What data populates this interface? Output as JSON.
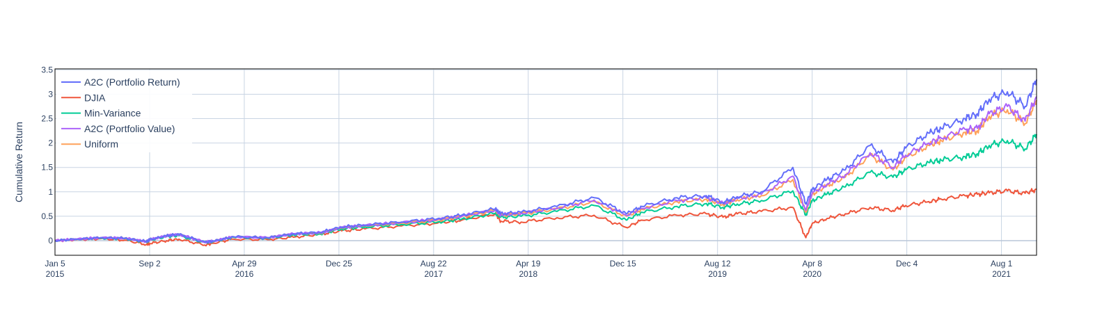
{
  "chart_data": {
    "type": "line",
    "title": "",
    "xlabel": "",
    "ylabel": "Cumulative Return",
    "x_range": [
      "2015-01-05",
      "2021-10-29"
    ],
    "ylim": [
      -0.3,
      3.52
    ],
    "grid": true,
    "legend_position": "top-left",
    "x_ticks": [
      {
        "date": "2015-01-05",
        "label": "Jan 5",
        "sublabel": "2015"
      },
      {
        "date": "2015-09-02",
        "label": "Sep 2",
        "sublabel": ""
      },
      {
        "date": "2016-04-29",
        "label": "Apr 29",
        "sublabel": "2016"
      },
      {
        "date": "2016-12-25",
        "label": "Dec 25",
        "sublabel": ""
      },
      {
        "date": "2017-08-22",
        "label": "Aug 22",
        "sublabel": "2017"
      },
      {
        "date": "2018-04-19",
        "label": "Apr 19",
        "sublabel": "2018"
      },
      {
        "date": "2018-12-15",
        "label": "Dec 15",
        "sublabel": ""
      },
      {
        "date": "2019-08-12",
        "label": "Aug 12",
        "sublabel": "2019"
      },
      {
        "date": "2020-04-08",
        "label": "Apr 8",
        "sublabel": "2020"
      },
      {
        "date": "2020-12-04",
        "label": "Dec 4",
        "sublabel": ""
      },
      {
        "date": "2021-08-01",
        "label": "Aug 1",
        "sublabel": "2021"
      }
    ],
    "y_ticks": [
      {
        "value": 0,
        "label": "0"
      },
      {
        "value": 0.5,
        "label": "0.5"
      },
      {
        "value": 1,
        "label": "1"
      },
      {
        "value": 1.5,
        "label": "1.5"
      },
      {
        "value": 2,
        "label": "2"
      },
      {
        "value": 2.5,
        "label": "2.5"
      },
      {
        "value": 3,
        "label": "3"
      },
      {
        "value": 3.5,
        "label": "3.5"
      }
    ],
    "x": [
      "2015-01-05",
      "2015-03-01",
      "2015-05-01",
      "2015-07-01",
      "2015-08-25",
      "2015-09-02",
      "2015-10-15",
      "2015-11-15",
      "2016-01-20",
      "2016-02-11",
      "2016-04-01",
      "2016-06-27",
      "2016-09-01",
      "2016-11-08",
      "2017-01-01",
      "2017-03-01",
      "2017-06-01",
      "2017-09-01",
      "2017-11-01",
      "2018-01-26",
      "2018-02-08",
      "2018-04-01",
      "2018-07-01",
      "2018-10-03",
      "2018-12-24",
      "2019-02-01",
      "2019-05-01",
      "2019-07-15",
      "2019-08-26",
      "2019-10-01",
      "2019-12-01",
      "2020-02-19",
      "2020-03-23",
      "2020-04-08",
      "2020-05-15",
      "2020-07-01",
      "2020-09-02",
      "2020-10-30",
      "2020-12-01",
      "2021-01-29",
      "2021-03-01",
      "2021-05-01",
      "2021-06-01",
      "2021-07-01",
      "2021-08-16",
      "2021-09-30",
      "2021-10-29"
    ],
    "series": [
      {
        "name": "A2C (Portfolio Return)",
        "color": "#636efa",
        "values": [
          0.0,
          0.03,
          0.06,
          0.05,
          -0.02,
          0.02,
          0.1,
          0.13,
          -0.03,
          -0.01,
          0.08,
          0.06,
          0.14,
          0.17,
          0.28,
          0.32,
          0.38,
          0.45,
          0.52,
          0.65,
          0.55,
          0.58,
          0.7,
          0.88,
          0.55,
          0.7,
          0.88,
          0.92,
          0.78,
          0.9,
          1.0,
          1.5,
          0.75,
          1.05,
          1.25,
          1.45,
          1.95,
          1.6,
          1.9,
          2.2,
          2.3,
          2.5,
          2.6,
          2.9,
          3.05,
          2.75,
          3.3
        ]
      },
      {
        "name": "DJIA",
        "color": "#ef553b",
        "values": [
          0.0,
          0.02,
          0.04,
          0.01,
          -0.08,
          -0.06,
          0.0,
          0.03,
          -0.09,
          -0.05,
          0.03,
          0.02,
          0.07,
          0.13,
          0.2,
          0.24,
          0.3,
          0.36,
          0.42,
          0.55,
          0.4,
          0.38,
          0.47,
          0.52,
          0.27,
          0.42,
          0.52,
          0.55,
          0.48,
          0.55,
          0.6,
          0.68,
          0.06,
          0.35,
          0.45,
          0.55,
          0.68,
          0.62,
          0.72,
          0.8,
          0.85,
          0.92,
          0.95,
          0.98,
          1.02,
          0.97,
          1.05
        ]
      },
      {
        "name": "Min-Variance",
        "color": "#00cc96",
        "values": [
          0.0,
          0.03,
          0.05,
          0.04,
          -0.03,
          0.01,
          0.08,
          0.1,
          -0.04,
          -0.02,
          0.07,
          0.05,
          0.12,
          0.14,
          0.24,
          0.28,
          0.33,
          0.38,
          0.44,
          0.56,
          0.48,
          0.5,
          0.6,
          0.72,
          0.42,
          0.58,
          0.7,
          0.76,
          0.68,
          0.75,
          0.82,
          1.02,
          0.52,
          0.82,
          0.95,
          1.1,
          1.4,
          1.3,
          1.45,
          1.6,
          1.65,
          1.72,
          1.78,
          1.95,
          2.05,
          1.88,
          2.18
        ]
      },
      {
        "name": "A2C (Portfolio Value)",
        "color": "#ab63fa",
        "values": [
          0.0,
          0.03,
          0.06,
          0.05,
          -0.02,
          0.02,
          0.1,
          0.13,
          -0.03,
          -0.01,
          0.08,
          0.06,
          0.14,
          0.16,
          0.27,
          0.31,
          0.37,
          0.43,
          0.5,
          0.63,
          0.53,
          0.56,
          0.67,
          0.83,
          0.52,
          0.66,
          0.82,
          0.88,
          0.76,
          0.86,
          0.95,
          1.32,
          0.62,
          0.98,
          1.15,
          1.35,
          1.8,
          1.5,
          1.75,
          2.0,
          2.1,
          2.28,
          2.3,
          2.6,
          2.75,
          2.45,
          2.95
        ]
      },
      {
        "name": "Uniform",
        "color": "#ffa15a",
        "values": [
          0.0,
          0.03,
          0.06,
          0.05,
          -0.02,
          0.02,
          0.1,
          0.13,
          -0.03,
          -0.01,
          0.08,
          0.06,
          0.14,
          0.16,
          0.27,
          0.31,
          0.36,
          0.42,
          0.49,
          0.62,
          0.52,
          0.55,
          0.65,
          0.8,
          0.5,
          0.64,
          0.8,
          0.85,
          0.74,
          0.84,
          0.92,
          1.25,
          0.58,
          0.95,
          1.12,
          1.3,
          1.75,
          1.45,
          1.7,
          1.95,
          2.05,
          2.22,
          2.25,
          2.55,
          2.68,
          2.4,
          2.88
        ]
      }
    ]
  }
}
